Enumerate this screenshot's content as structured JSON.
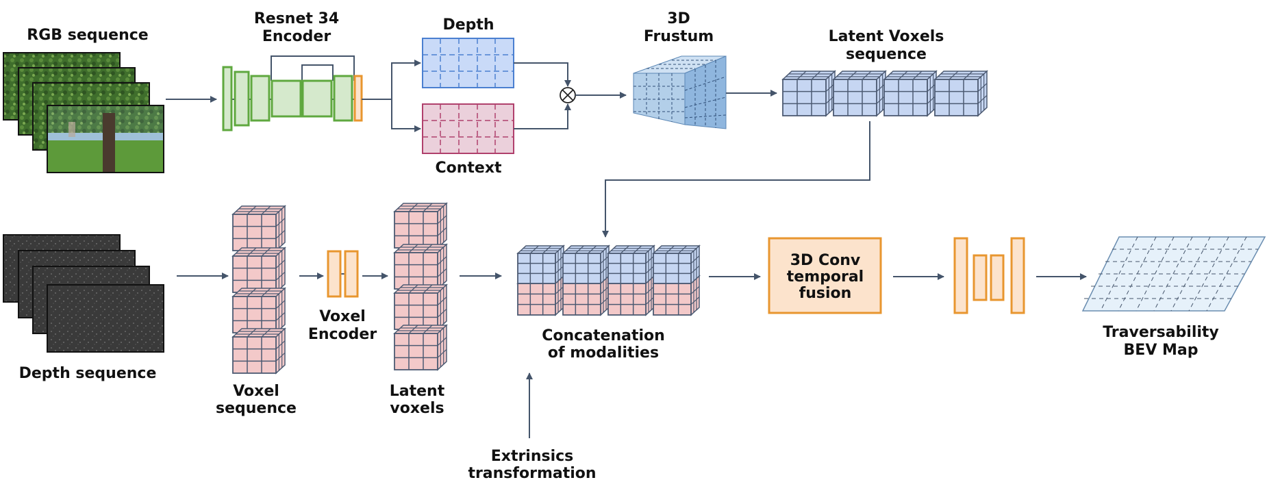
{
  "labels": {
    "rgb_sequence": "RGB sequence",
    "encoder_l1": "Resnet 34",
    "encoder_l2": "Encoder",
    "depth": "Depth",
    "context": "Context",
    "frustum_l1": "3D",
    "frustum_l2": "Frustum",
    "latent_seq_l1": "Latent Voxels",
    "latent_seq_l2": "sequence",
    "depth_sequence": "Depth sequence",
    "voxel_seq_l1": "Voxel",
    "voxel_seq_l2": "sequence",
    "voxel_enc_l1": "Voxel",
    "voxel_enc_l2": "Encoder",
    "latent_vox_l1": "Latent",
    "latent_vox_l2": "voxels",
    "concat_l1": "Concatenation",
    "concat_l2": "of modalities",
    "extrinsics_l1": "Extrinsics",
    "extrinsics_l2": "transformation",
    "conv3d_l1": "3D Conv",
    "conv3d_l2": "temporal",
    "conv3d_l3": "fusion",
    "bev_l1": "Traversability",
    "bev_l2": "BEV Map"
  },
  "colors": {
    "arrow": "#44546a",
    "green_stroke": "#5fa83f",
    "green_fill": "#d5e9cc",
    "orange_stroke": "#e8962f",
    "orange_fill": "#fce3cc",
    "blue_stroke": "#4a7fd0",
    "blue_fill": "#c9daf8",
    "pink_stroke": "#b0406c",
    "pink_fill": "#ebd0db",
    "voxel_blue": "#c6d6f2",
    "voxel_pink": "#f3c9c9",
    "voxel_edge": "#4c5a72",
    "frustum_front": "#b3cfe9",
    "frustum_side": "#8fb6de",
    "bev_fill": "#e6f1fa",
    "bev_stroke": "#6a8db0"
  }
}
